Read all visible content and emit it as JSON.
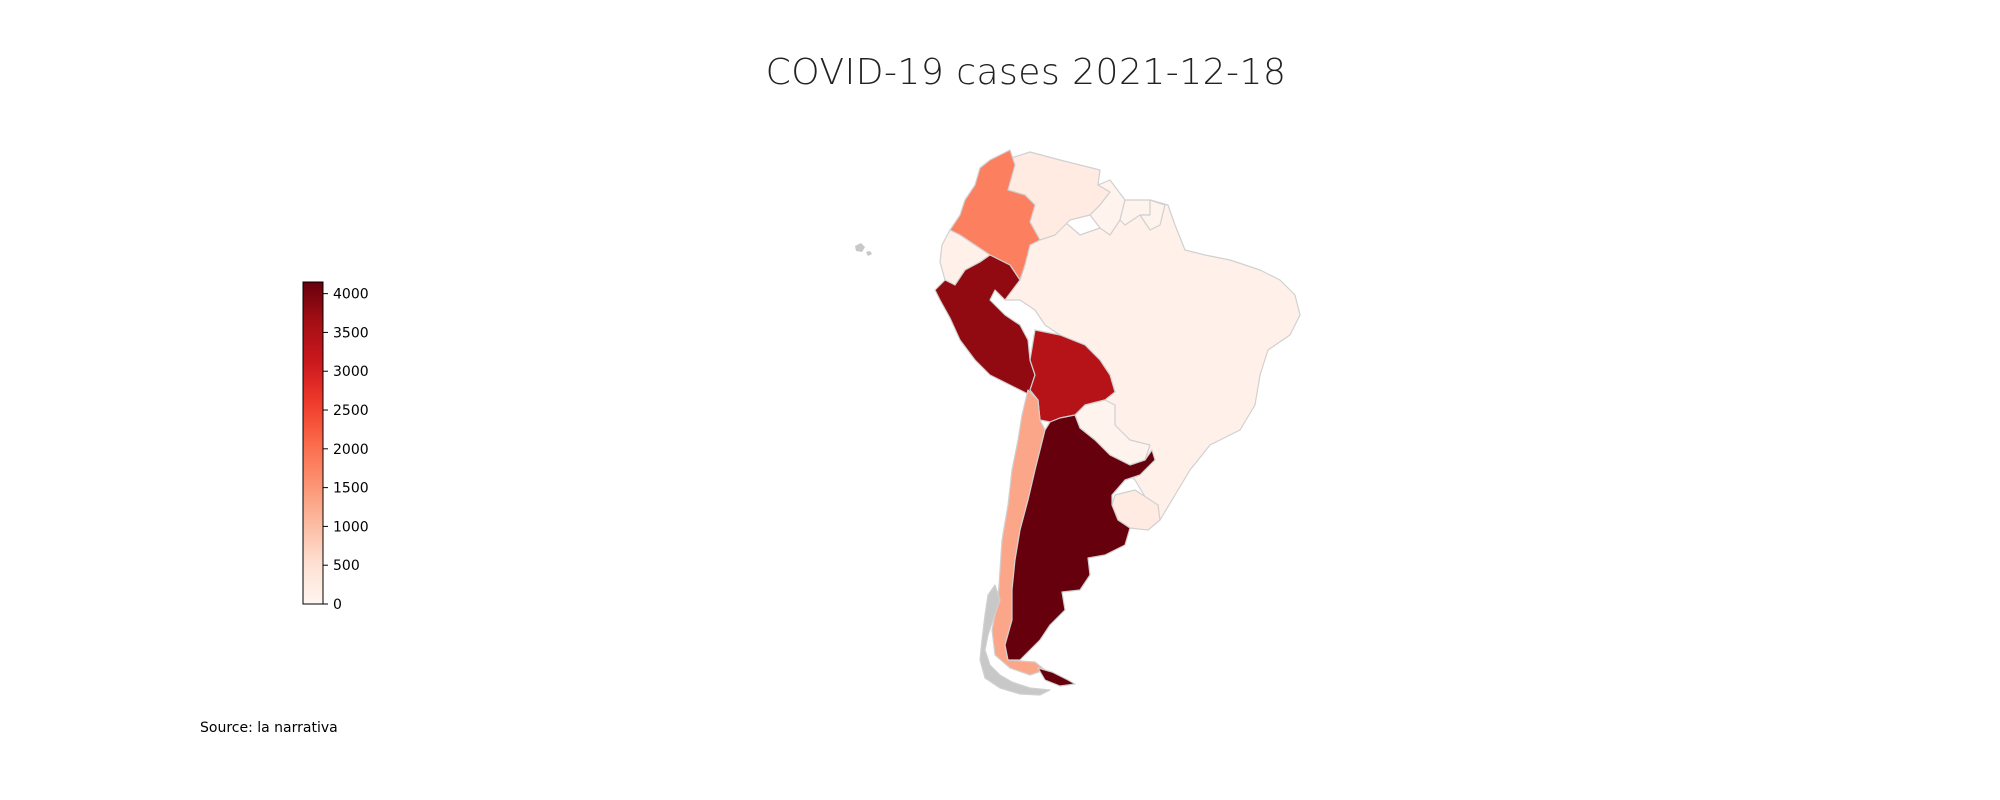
{
  "title": "COVID-19 cases 2021-12-18",
  "source": "Source: la narrativa",
  "colorbar": {
    "min": 0,
    "max": 4150,
    "ticks": [
      "0",
      "500",
      "1000",
      "1500",
      "2000",
      "2500",
      "3000",
      "3500",
      "4000"
    ],
    "colors": [
      "#fff5f0",
      "#fee0d2",
      "#fcbba1",
      "#fc9272",
      "#fb6a4a",
      "#ef3b2c",
      "#cb181d",
      "#a50f15",
      "#67000d"
    ],
    "no_data_color": "#c8c8c8"
  },
  "chart_data": {
    "type": "choropleth",
    "title": "COVID-19 cases 2021-12-18",
    "legend": "colorbar left",
    "regions": [
      {
        "name": "Argentina",
        "value": 4150
      },
      {
        "name": "Peru",
        "value": 3800
      },
      {
        "name": "Bolivia",
        "value": 3400
      },
      {
        "name": "Colombia",
        "value": 1800
      },
      {
        "name": "Chile",
        "value": 1300
      },
      {
        "name": "Venezuela",
        "value": 250
      },
      {
        "name": "Uruguay",
        "value": 250
      },
      {
        "name": "Brazil",
        "value": 100
      },
      {
        "name": "Ecuador",
        "value": 100
      },
      {
        "name": "Paraguay",
        "value": 50
      },
      {
        "name": "Guyana",
        "value": 50
      },
      {
        "name": "Suriname",
        "value": 50
      },
      {
        "name": "French Guiana",
        "value": 50
      }
    ]
  }
}
